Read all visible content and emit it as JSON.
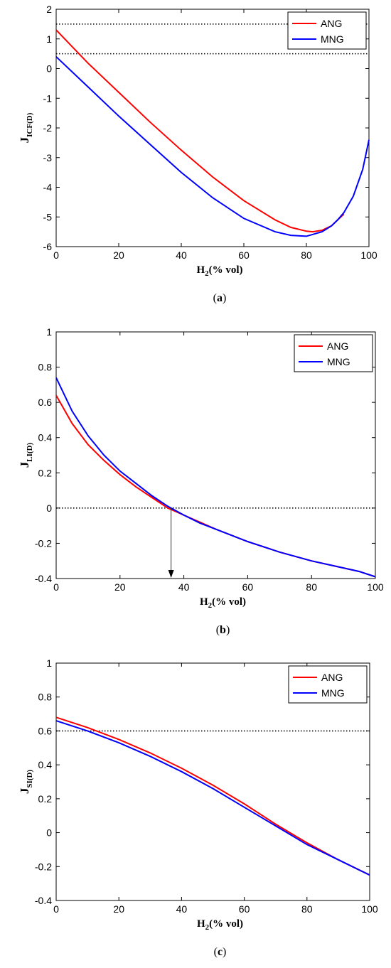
{
  "chart_data": [
    {
      "type": "line",
      "caption": "(a)",
      "xlabel": "H2(% vol)",
      "ylabel": "JICF(D)",
      "xlim": [
        0,
        100
      ],
      "ylim": [
        -6,
        2
      ],
      "xticks": [
        0,
        20,
        40,
        60,
        80,
        100
      ],
      "yticks": [
        -6,
        -5,
        -4,
        -3,
        -2,
        -1,
        0,
        1,
        2
      ],
      "legend": "top-right",
      "reference_lines": [
        1.5,
        0.5
      ],
      "series": [
        {
          "name": "ANG",
          "color": "#ff0000",
          "x": [
            0,
            10,
            20,
            30,
            40,
            50,
            60,
            70,
            75,
            80,
            82,
            85,
            88,
            90,
            92
          ],
          "y": [
            1.3,
            0.2,
            -0.8,
            -1.8,
            -2.75,
            -3.65,
            -4.45,
            -5.1,
            -5.35,
            -5.48,
            -5.5,
            -5.45,
            -5.3,
            -5.1,
            -4.9
          ]
        },
        {
          "name": "MNG",
          "color": "#0000ff",
          "x": [
            0,
            10,
            20,
            30,
            40,
            50,
            60,
            70,
            75,
            80,
            85,
            88,
            90,
            92,
            95,
            98,
            100
          ],
          "y": [
            0.4,
            -0.6,
            -1.6,
            -2.55,
            -3.5,
            -4.35,
            -5.05,
            -5.5,
            -5.62,
            -5.65,
            -5.5,
            -5.3,
            -5.1,
            -4.85,
            -4.3,
            -3.4,
            -2.4
          ]
        }
      ]
    },
    {
      "type": "line",
      "caption": "(b)",
      "xlabel": "H2(% vol)",
      "ylabel": "JLI(D)",
      "xlim": [
        0,
        100
      ],
      "ylim": [
        -0.4,
        1
      ],
      "xticks": [
        0,
        20,
        40,
        60,
        80,
        100
      ],
      "yticks": [
        -0.4,
        -0.2,
        0,
        0.2,
        0.4,
        0.6,
        0.8,
        1
      ],
      "legend": "top-right",
      "reference_lines": [
        0
      ],
      "arrow_x": 36,
      "series": [
        {
          "name": "ANG",
          "color": "#ff0000",
          "x": [
            0,
            5,
            10,
            15,
            20,
            25,
            30,
            35,
            40,
            45,
            50,
            60,
            70,
            80,
            90,
            95,
            100
          ],
          "y": [
            0.64,
            0.48,
            0.36,
            0.27,
            0.19,
            0.12,
            0.06,
            0.0,
            -0.04,
            -0.08,
            -0.12,
            -0.19,
            -0.25,
            -0.3,
            -0.34,
            -0.36,
            -0.39
          ]
        },
        {
          "name": "MNG",
          "color": "#0000ff",
          "x": [
            0,
            5,
            10,
            15,
            20,
            25,
            30,
            35,
            40,
            45,
            50,
            60,
            70,
            80,
            90,
            95,
            100
          ],
          "y": [
            0.74,
            0.55,
            0.41,
            0.3,
            0.21,
            0.14,
            0.07,
            0.01,
            -0.04,
            -0.085,
            -0.12,
            -0.19,
            -0.25,
            -0.3,
            -0.34,
            -0.36,
            -0.39
          ]
        }
      ]
    },
    {
      "type": "line",
      "caption": "(c)",
      "xlabel": "H2(% vol)",
      "ylabel": "JSI(D)",
      "xlim": [
        0,
        100
      ],
      "ylim": [
        -0.4,
        1
      ],
      "xticks": [
        0,
        20,
        40,
        60,
        80,
        100
      ],
      "yticks": [
        -0.4,
        -0.2,
        0,
        0.2,
        0.4,
        0.6,
        0.8,
        1
      ],
      "legend": "top-right",
      "reference_lines": [
        0.6
      ],
      "series": [
        {
          "name": "ANG",
          "color": "#ff0000",
          "x": [
            0,
            10,
            20,
            30,
            40,
            50,
            60,
            70,
            80,
            90,
            100
          ],
          "y": [
            0.68,
            0.62,
            0.55,
            0.47,
            0.38,
            0.28,
            0.17,
            0.05,
            -0.06,
            -0.16,
            -0.25
          ]
        },
        {
          "name": "MNG",
          "color": "#0000ff",
          "x": [
            0,
            10,
            20,
            30,
            40,
            50,
            60,
            70,
            80,
            90,
            100
          ],
          "y": [
            0.66,
            0.6,
            0.53,
            0.45,
            0.36,
            0.26,
            0.15,
            0.04,
            -0.07,
            -0.16,
            -0.25
          ]
        }
      ]
    }
  ]
}
